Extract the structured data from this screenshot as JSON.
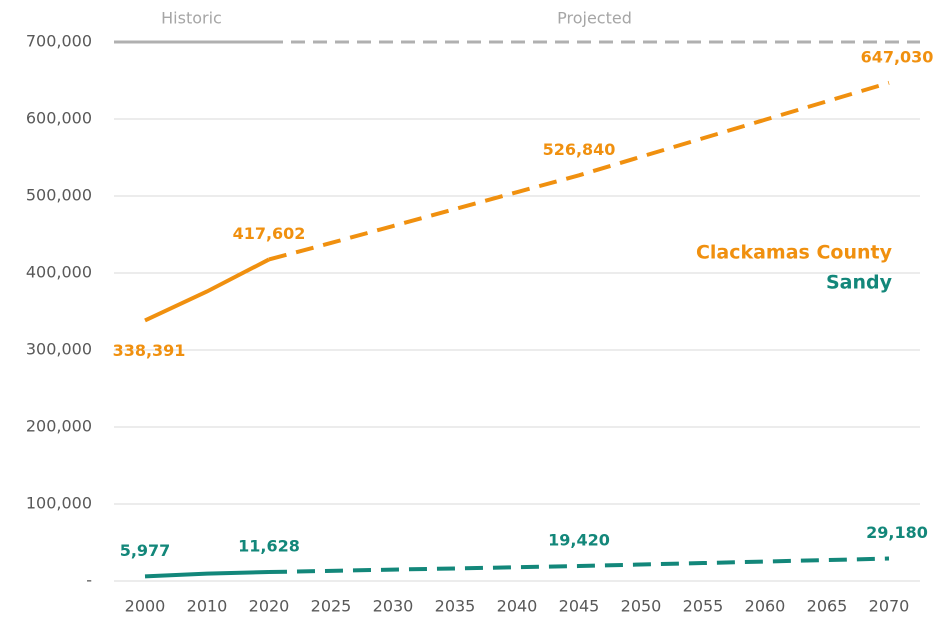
{
  "chart_data": {
    "type": "line",
    "categories": [
      "2000",
      "2010",
      "2020",
      "2025",
      "2030",
      "2035",
      "2040",
      "2045",
      "2050",
      "2055",
      "2060",
      "2065",
      "2070"
    ],
    "period_labels": [
      "Historic",
      "Projected"
    ],
    "projected_from": "2020",
    "series": [
      {
        "name": "Clackamas County",
        "color": "#f0900f",
        "values": [
          338391,
          375992,
          417602,
          439000,
          461000,
          483000,
          505000,
          526840,
          551000,
          575000,
          599000,
          623000,
          647030
        ],
        "value_labels": [
          "338,391",
          null,
          "417,602",
          null,
          null,
          null,
          null,
          "526,840",
          null,
          null,
          null,
          null,
          "647,030"
        ]
      },
      {
        "name": "Sandy",
        "color": "#13877a",
        "values": [
          5977,
          9570,
          11628,
          13200,
          14800,
          16300,
          17900,
          19420,
          21400,
          23300,
          25300,
          27200,
          29180
        ],
        "value_labels": [
          "5,977",
          null,
          "11,628",
          null,
          null,
          null,
          null,
          "19,420",
          null,
          null,
          null,
          null,
          "29,180"
        ]
      }
    ],
    "ylim": [
      0,
      700000
    ],
    "yticks": [
      {
        "value": 0,
        "label": "-"
      },
      {
        "value": 100000,
        "label": "100,000"
      },
      {
        "value": 200000,
        "label": "200,000"
      },
      {
        "value": 300000,
        "label": "300,000"
      },
      {
        "value": 400000,
        "label": "400,000"
      },
      {
        "value": 500000,
        "label": "500,000"
      },
      {
        "value": 600000,
        "label": "600,000"
      },
      {
        "value": 700000,
        "label": "700,000"
      }
    ],
    "grid": true,
    "legend": "right"
  }
}
